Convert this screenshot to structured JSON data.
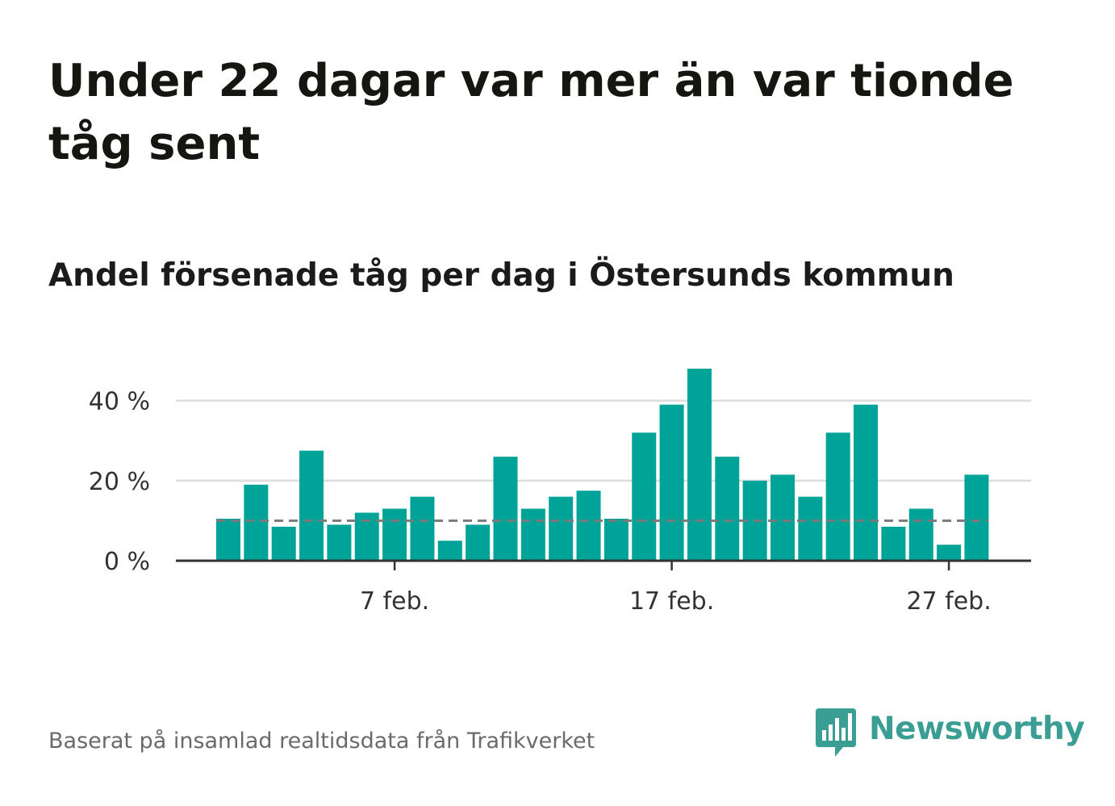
{
  "header": {
    "title": "Under 22 dagar var mer än var tionde tåg sent",
    "subtitle": "Andel försenade tåg per dag i Östersunds kommun"
  },
  "footer": {
    "source": "Baserat på insamlad realtidsdata från Trafikverket",
    "brand": "Newsworthy",
    "brand_icon": "chart-bars-speech-bubble-icon"
  },
  "colors": {
    "bar": "#00a398",
    "reference_line": "#7a7a7a",
    "grid": "#dddddd",
    "axis": "#333333",
    "brand": "#3b9e94"
  },
  "chart_data": {
    "type": "bar",
    "x": [
      "2022-02-01",
      "2022-02-02",
      "2022-02-03",
      "2022-02-04",
      "2022-02-05",
      "2022-02-06",
      "2022-02-07",
      "2022-02-08",
      "2022-02-09",
      "2022-02-10",
      "2022-02-11",
      "2022-02-12",
      "2022-02-13",
      "2022-02-14",
      "2022-02-15",
      "2022-02-16",
      "2022-02-17",
      "2022-02-18",
      "2022-02-19",
      "2022-02-20",
      "2022-02-21",
      "2022-02-22",
      "2022-02-23",
      "2022-02-24",
      "2022-02-25",
      "2022-02-26",
      "2022-02-27",
      "2022-02-28"
    ],
    "values": [
      10.5,
      19,
      8.5,
      27.5,
      9,
      12,
      13,
      16,
      5,
      9,
      26,
      13,
      16,
      17.5,
      10.5,
      32,
      39,
      48,
      26,
      20,
      21.5,
      16,
      32,
      39,
      8.5,
      13,
      4,
      21.5
    ],
    "reference_line": 10,
    "ylim": [
      0,
      50
    ],
    "y_ticks": [
      0,
      20,
      40
    ],
    "y_tick_labels": [
      "0 %",
      "20 %",
      "40 %"
    ],
    "x_ticks": [
      "2022-02-07",
      "2022-02-17",
      "2022-02-27"
    ],
    "x_tick_labels": [
      "7 feb.",
      "17 feb.",
      "27 feb."
    ],
    "xlabel": "",
    "ylabel": "",
    "grid": true
  }
}
